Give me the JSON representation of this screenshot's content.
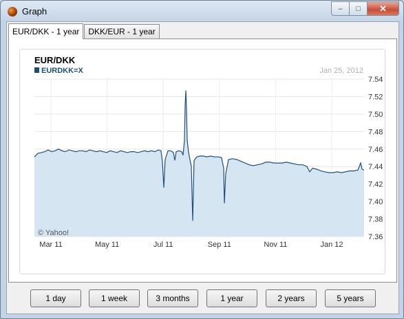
{
  "window": {
    "title": "Graph"
  },
  "tabs": [
    {
      "label": "EUR/DKK - 1 year"
    },
    {
      "label": "DKK/EUR - 1 year"
    }
  ],
  "chart_data": {
    "type": "line",
    "title": "EUR/DKK",
    "legend": "EURDKK=X",
    "date": "Jan 25, 2012",
    "watermark": "© Yahoo!",
    "ylim": [
      7.36,
      7.54
    ],
    "yticks": [
      "7.54",
      "7.52",
      "7.50",
      "7.48",
      "7.46",
      "7.44",
      "7.42",
      "7.40",
      "7.38",
      "7.36"
    ],
    "xticks": [
      "Mar 11",
      "May 11",
      "Jul 11",
      "Sep 11",
      "Nov 11",
      "Jan 12"
    ],
    "series": [
      {
        "name": "EURDKK=X",
        "color": "#1f4e79",
        "fill": "#d5e5f2"
      }
    ],
    "points": [
      [
        0,
        7.451
      ],
      [
        5,
        7.455
      ],
      [
        10,
        7.456
      ],
      [
        15,
        7.457
      ],
      [
        20,
        7.459
      ],
      [
        25,
        7.457
      ],
      [
        30,
        7.458
      ],
      [
        35,
        7.46
      ],
      [
        40,
        7.458
      ],
      [
        45,
        7.457
      ],
      [
        50,
        7.459
      ],
      [
        55,
        7.458
      ],
      [
        60,
        7.457
      ],
      [
        65,
        7.458
      ],
      [
        70,
        7.458
      ],
      [
        75,
        7.457
      ],
      [
        80,
        7.459
      ],
      [
        85,
        7.458
      ],
      [
        90,
        7.457
      ],
      [
        95,
        7.458
      ],
      [
        100,
        7.457
      ],
      [
        105,
        7.456
      ],
      [
        110,
        7.458
      ],
      [
        115,
        7.457
      ],
      [
        120,
        7.456
      ],
      [
        125,
        7.458
      ],
      [
        130,
        7.457
      ],
      [
        135,
        7.456
      ],
      [
        140,
        7.457
      ],
      [
        145,
        7.457
      ],
      [
        150,
        7.456
      ],
      [
        155,
        7.457
      ],
      [
        160,
        7.458
      ],
      [
        165,
        7.457
      ],
      [
        170,
        7.458
      ],
      [
        175,
        7.457
      ],
      [
        180,
        7.459
      ],
      [
        184,
        7.458
      ],
      [
        186,
        7.445
      ],
      [
        188,
        7.416
      ],
      [
        190,
        7.448
      ],
      [
        194,
        7.458
      ],
      [
        198,
        7.458
      ],
      [
        202,
        7.456
      ],
      [
        204,
        7.447
      ],
      [
        206,
        7.457
      ],
      [
        210,
        7.458
      ],
      [
        214,
        7.457
      ],
      [
        216,
        7.453
      ],
      [
        218,
        7.47
      ],
      [
        219,
        7.51
      ],
      [
        220,
        7.527
      ],
      [
        221,
        7.505
      ],
      [
        222,
        7.47
      ],
      [
        224,
        7.456
      ],
      [
        226,
        7.448
      ],
      [
        228,
        7.44
      ],
      [
        230,
        7.378
      ],
      [
        232,
        7.447
      ],
      [
        236,
        7.451
      ],
      [
        240,
        7.452
      ],
      [
        246,
        7.452
      ],
      [
        250,
        7.451
      ],
      [
        256,
        7.452
      ],
      [
        262,
        7.451
      ],
      [
        268,
        7.451
      ],
      [
        272,
        7.45
      ],
      [
        275,
        7.438
      ],
      [
        276,
        7.398
      ],
      [
        278,
        7.432
      ],
      [
        282,
        7.448
      ],
      [
        288,
        7.449
      ],
      [
        294,
        7.448
      ],
      [
        300,
        7.446
      ],
      [
        306,
        7.444
      ],
      [
        312,
        7.442
      ],
      [
        318,
        7.441
      ],
      [
        324,
        7.442
      ],
      [
        330,
        7.443
      ],
      [
        336,
        7.445
      ],
      [
        342,
        7.445
      ],
      [
        348,
        7.444
      ],
      [
        354,
        7.444
      ],
      [
        360,
        7.444
      ],
      [
        366,
        7.445
      ],
      [
        372,
        7.444
      ],
      [
        378,
        7.443
      ],
      [
        384,
        7.442
      ],
      [
        390,
        7.442
      ],
      [
        396,
        7.44
      ],
      [
        400,
        7.434
      ],
      [
        404,
        7.438
      ],
      [
        410,
        7.437
      ],
      [
        416,
        7.435
      ],
      [
        422,
        7.434
      ],
      [
        428,
        7.433
      ],
      [
        434,
        7.433
      ],
      [
        440,
        7.434
      ],
      [
        446,
        7.433
      ],
      [
        452,
        7.434
      ],
      [
        458,
        7.435
      ],
      [
        464,
        7.435
      ],
      [
        470,
        7.436
      ],
      [
        474,
        7.444
      ],
      [
        476,
        7.437
      ],
      [
        479,
        7.436
      ]
    ]
  },
  "range_buttons": [
    "1 day",
    "1 week",
    "3 months",
    "1 year",
    "2 years",
    "5 years"
  ]
}
